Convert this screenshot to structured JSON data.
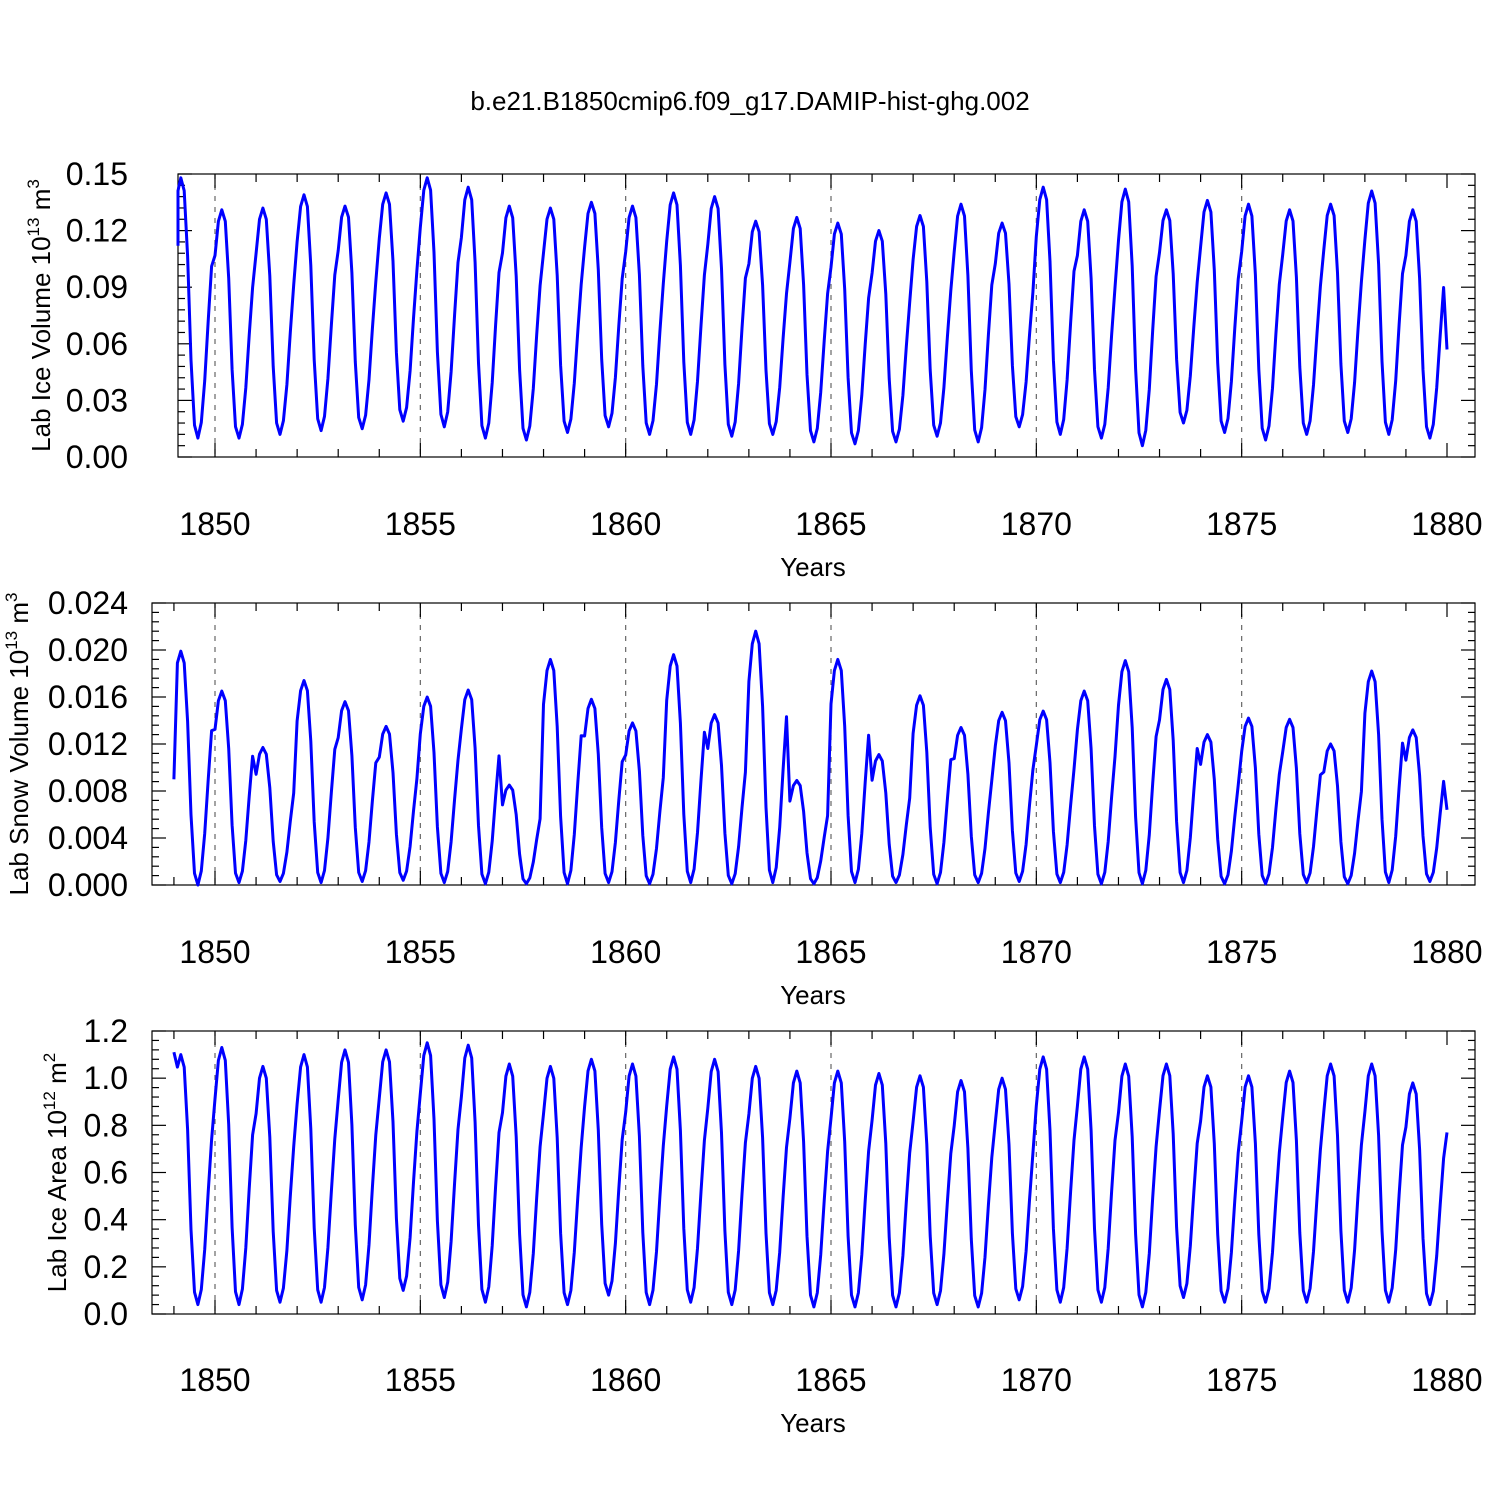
{
  "title": "b.e21.B1850cmip6.f09_g17.DAMIP-hist-ghg.002",
  "chart_data": [
    {
      "type": "line",
      "name": "lab-ice-volume",
      "ylabel_main": "Lab Ice Volume 10",
      "ylabel_exp": "13",
      "ylabel_unit": "m",
      "ylabel_unit_exp": "3",
      "xlabel": "Years",
      "xlim": [
        1849,
        1880
      ],
      "ylim": [
        0.0,
        0.15
      ],
      "xticks": [
        "1850",
        "1855",
        "1860",
        "1865",
        "1870",
        "1875",
        "1880"
      ],
      "yticks": [
        "0.00",
        "0.03",
        "0.06",
        "0.09",
        "0.12",
        "0.15"
      ],
      "ytick_values": [
        0.0,
        0.03,
        0.06,
        0.09,
        0.12,
        0.15
      ],
      "series": [
        {
          "name": "Lab Ice Volume",
          "x_start": 1849.0,
          "x_step": 0.0833333,
          "annual_peaks": [
            0.148,
            0.131,
            0.132,
            0.139,
            0.133,
            0.14,
            0.148,
            0.143,
            0.133,
            0.132,
            0.135,
            0.133,
            0.14,
            0.138,
            0.125,
            0.127,
            0.124,
            0.12,
            0.128,
            0.134,
            0.124,
            0.143,
            0.131,
            0.142,
            0.131,
            0.136,
            0.134,
            0.131,
            0.134,
            0.141,
            0.131
          ],
          "annual_mins": [
            0.01,
            0.01,
            0.012,
            0.014,
            0.015,
            0.019,
            0.016,
            0.01,
            0.009,
            0.013,
            0.016,
            0.012,
            0.012,
            0.011,
            0.012,
            0.008,
            0.007,
            0.008,
            0.011,
            0.008,
            0.016,
            0.012,
            0.01,
            0.006,
            0.018,
            0.013,
            0.009,
            0.012,
            0.013,
            0.012,
            0.01
          ],
          "end_value": 0.057,
          "start_value": 0.112
        }
      ]
    },
    {
      "type": "line",
      "name": "lab-snow-volume",
      "ylabel_main": "Lab Snow Volume 10",
      "ylabel_exp": "13",
      "ylabel_unit": "m",
      "ylabel_unit_exp": "3",
      "xlabel": "Years",
      "xlim": [
        1849,
        1880
      ],
      "ylim": [
        0.0,
        0.024
      ],
      "xticks": [
        "1850",
        "1855",
        "1860",
        "1865",
        "1870",
        "1875",
        "1880"
      ],
      "yticks": [
        "0.000",
        "0.004",
        "0.008",
        "0.012",
        "0.016",
        "0.020",
        "0.024"
      ],
      "ytick_values": [
        0.0,
        0.004,
        0.008,
        0.012,
        0.016,
        0.02,
        0.024
      ],
      "series": [
        {
          "name": "Lab Snow Volume",
          "x_start": 1849.0,
          "x_step": 0.0833333,
          "annual_peaks": [
            0.0199,
            0.0165,
            0.0117,
            0.0174,
            0.0156,
            0.0135,
            0.016,
            0.0166,
            0.0085,
            0.0192,
            0.0158,
            0.0138,
            0.0196,
            0.0145,
            0.0216,
            0.0089,
            0.0192,
            0.0111,
            0.0161,
            0.0134,
            0.0147,
            0.0148,
            0.0165,
            0.0191,
            0.0175,
            0.0128,
            0.0142,
            0.0141,
            0.012,
            0.0182,
            0.0132
          ],
          "annual_mins": [
            0.0,
            0.0002,
            0.0003,
            0.0002,
            0.0003,
            0.0004,
            0.0002,
            0.0001,
            0.0001,
            0.0001,
            0.0002,
            0.0001,
            0.0002,
            0.0001,
            0.0002,
            0.0001,
            0.0002,
            0.0002,
            0.0001,
            0.0002,
            0.0003,
            0.0002,
            0.0001,
            0.0001,
            0.0002,
            0.0001,
            0.0001,
            0.0002,
            0.0001,
            0.0002,
            0.0003
          ],
          "end_value": 0.0064,
          "start_value": 0.009
        }
      ]
    },
    {
      "type": "line",
      "name": "lab-ice-area",
      "ylabel_main": "Lab Ice Area 10",
      "ylabel_exp": "12",
      "ylabel_unit": "m",
      "ylabel_unit_exp": "2",
      "xlabel": "Years",
      "xlim": [
        1849,
        1880
      ],
      "ylim": [
        0.0,
        1.2
      ],
      "xticks": [
        "1850",
        "1855",
        "1860",
        "1865",
        "1870",
        "1875",
        "1880"
      ],
      "yticks": [
        "0.0",
        "0.2",
        "0.4",
        "0.6",
        "0.8",
        "1.0",
        "1.2"
      ],
      "ytick_values": [
        0.0,
        0.2,
        0.4,
        0.6,
        0.8,
        1.0,
        1.2
      ],
      "series": [
        {
          "name": "Lab Ice Area",
          "x_start": 1849.0,
          "x_step": 0.0833333,
          "annual_peaks": [
            1.1,
            1.13,
            1.05,
            1.1,
            1.12,
            1.12,
            1.15,
            1.14,
            1.06,
            1.05,
            1.08,
            1.06,
            1.09,
            1.08,
            1.05,
            1.03,
            1.03,
            1.02,
            1.01,
            0.99,
            1.0,
            1.09,
            1.09,
            1.06,
            1.06,
            1.01,
            1.01,
            1.03,
            1.06,
            1.06,
            0.98
          ],
          "annual_mins": [
            0.04,
            0.04,
            0.05,
            0.05,
            0.06,
            0.1,
            0.07,
            0.05,
            0.03,
            0.04,
            0.08,
            0.04,
            0.05,
            0.04,
            0.04,
            0.03,
            0.03,
            0.03,
            0.04,
            0.03,
            0.06,
            0.05,
            0.05,
            0.03,
            0.07,
            0.05,
            0.05,
            0.05,
            0.05,
            0.05,
            0.04
          ],
          "end_value": 0.77,
          "start_value": 1.11
        }
      ]
    }
  ]
}
